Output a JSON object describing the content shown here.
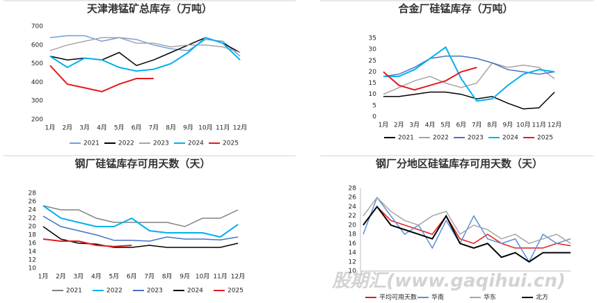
{
  "chart_data": [
    {
      "type": "line",
      "title": "天津港锰矿总库存（万吨）",
      "categories": [
        "1月",
        "2月",
        "3月",
        "4月",
        "5月",
        "6月",
        "7月",
        "8月",
        "9月",
        "10月",
        "11月",
        "12月"
      ],
      "ylim": [
        200,
        700
      ],
      "yticks": [
        200,
        300,
        400,
        500,
        600,
        700
      ],
      "grid": false,
      "series": [
        {
          "name": "2021",
          "color": "#6f9fd8",
          "values": [
            640,
            650,
            650,
            620,
            640,
            630,
            600,
            580,
            570,
            630,
            620,
            540
          ]
        },
        {
          "name": "2022",
          "color": "#000000",
          "values": [
            540,
            520,
            530,
            520,
            560,
            490,
            520,
            560,
            600,
            640,
            610,
            560
          ]
        },
        {
          "name": "2023",
          "color": "#a5a5a5",
          "values": [
            570,
            600,
            620,
            640,
            640,
            610,
            610,
            590,
            600,
            600,
            590,
            560
          ]
        },
        {
          "name": "2024",
          "color": "#00b0f0",
          "values": [
            540,
            480,
            530,
            520,
            480,
            460,
            470,
            500,
            560,
            640,
            610,
            520
          ]
        },
        {
          "name": "2025",
          "color": "#e31a1c",
          "values": [
            490,
            390,
            370,
            350,
            390,
            420,
            420,
            null,
            null,
            null,
            null,
            null
          ]
        }
      ]
    },
    {
      "type": "line",
      "title": "合金厂硅锰库存（万吨）",
      "categories": [
        "1月",
        "2月",
        "3月",
        "4月",
        "5月",
        "6月",
        "7月",
        "8月",
        "9月",
        "10月",
        "11月",
        "12月"
      ],
      "ylim": [
        0,
        35
      ],
      "yticks": [
        0,
        5,
        10,
        15,
        20,
        25,
        30,
        35
      ],
      "grid": false,
      "series": [
        {
          "name": "2021",
          "color": "#000000",
          "values": [
            9,
            9,
            10,
            11,
            11,
            10,
            8,
            9,
            6,
            3.5,
            4,
            11
          ]
        },
        {
          "name": "2022",
          "color": "#a5a5a5",
          "values": [
            10,
            13,
            16,
            18,
            15,
            13,
            15,
            24,
            22,
            23,
            22,
            17
          ]
        },
        {
          "name": "2023",
          "color": "#4472c4",
          "values": [
            18,
            19,
            22,
            26,
            27,
            27,
            26,
            24,
            21,
            20,
            19,
            20
          ]
        },
        {
          "name": "2024",
          "color": "#00b0f0",
          "values": [
            18,
            18,
            21,
            26,
            31,
            17,
            7,
            8,
            14,
            19,
            21,
            20
          ]
        },
        {
          "name": "2025",
          "color": "#e31a1c",
          "values": [
            20,
            14,
            12,
            14,
            16,
            20,
            22,
            null,
            null,
            null,
            null,
            null
          ]
        }
      ]
    },
    {
      "type": "line",
      "title": "钢厂硅锰库存可用天数（天）",
      "categories": [
        "1月",
        "2月",
        "3月",
        "4月",
        "5月",
        "6月",
        "7月",
        "8月",
        "9月",
        "10月",
        "11月",
        "12月"
      ],
      "ylim": [
        10,
        28
      ],
      "yticks": [
        10,
        12,
        14,
        16,
        18,
        20,
        22,
        24,
        26,
        28
      ],
      "grid": false,
      "series": [
        {
          "name": "2021",
          "color": "#808080",
          "values": [
            25,
            24,
            24,
            22,
            21,
            21,
            21,
            21,
            20,
            22,
            22,
            24
          ]
        },
        {
          "name": "2022",
          "color": "#00b0f0",
          "values": [
            25,
            22,
            21,
            20,
            20,
            22,
            19,
            18.5,
            18.5,
            18.5,
            17.5,
            20.5
          ]
        },
        {
          "name": "2023",
          "color": "#4472c4",
          "values": [
            22.5,
            20,
            19,
            18,
            16.7,
            16.7,
            16.5,
            17.5,
            17,
            17,
            16.8,
            17.5
          ]
        },
        {
          "name": "2024",
          "color": "#000000",
          "values": [
            20,
            17,
            16,
            15.8,
            15,
            15,
            15.5,
            15,
            15,
            15,
            15,
            16
          ]
        },
        {
          "name": "2025",
          "color": "#e31a1c",
          "values": [
            17,
            16.5,
            16.5,
            15.5,
            15.2,
            15.5,
            null,
            null,
            null,
            null,
            null,
            null
          ]
        }
      ]
    },
    {
      "type": "line",
      "title": "钢厂分地区硅锰库存可用天数（天）",
      "categories": [
        null,
        null,
        null,
        null,
        null,
        null,
        null,
        null,
        null,
        null,
        null,
        null,
        null,
        null,
        null,
        null
      ],
      "ylim": [
        10,
        28
      ],
      "yticks": [
        10,
        12,
        14,
        16,
        18,
        20,
        22,
        24,
        26,
        28
      ],
      "grid": false,
      "series": [
        {
          "name": "平均可用天数",
          "color": "#e31a1c",
          "values": [
            20,
            24,
            21,
            20,
            19,
            18,
            22,
            17,
            16,
            18,
            16,
            15,
            15,
            15,
            16,
            15.5
          ]
        },
        {
          "name": "华南",
          "color": "#5b8fd6",
          "values": [
            18,
            26,
            22,
            18,
            20,
            15,
            21,
            16,
            22,
            17,
            16,
            17,
            12,
            18,
            16,
            17
          ]
        },
        {
          "name": "华东",
          "color": "#a5a5a5",
          "values": [
            22,
            26,
            23,
            21,
            20,
            22,
            23,
            18,
            20,
            19,
            17,
            18,
            16,
            17,
            18,
            16
          ]
        },
        {
          "name": "北方",
          "color": "#000000",
          "values": [
            20,
            24,
            20,
            19,
            18,
            17,
            22,
            16,
            15,
            16,
            13,
            14,
            12,
            14,
            14,
            14
          ]
        }
      ]
    }
  ],
  "watermark": "股期汇(www.gaqihui.cn)"
}
